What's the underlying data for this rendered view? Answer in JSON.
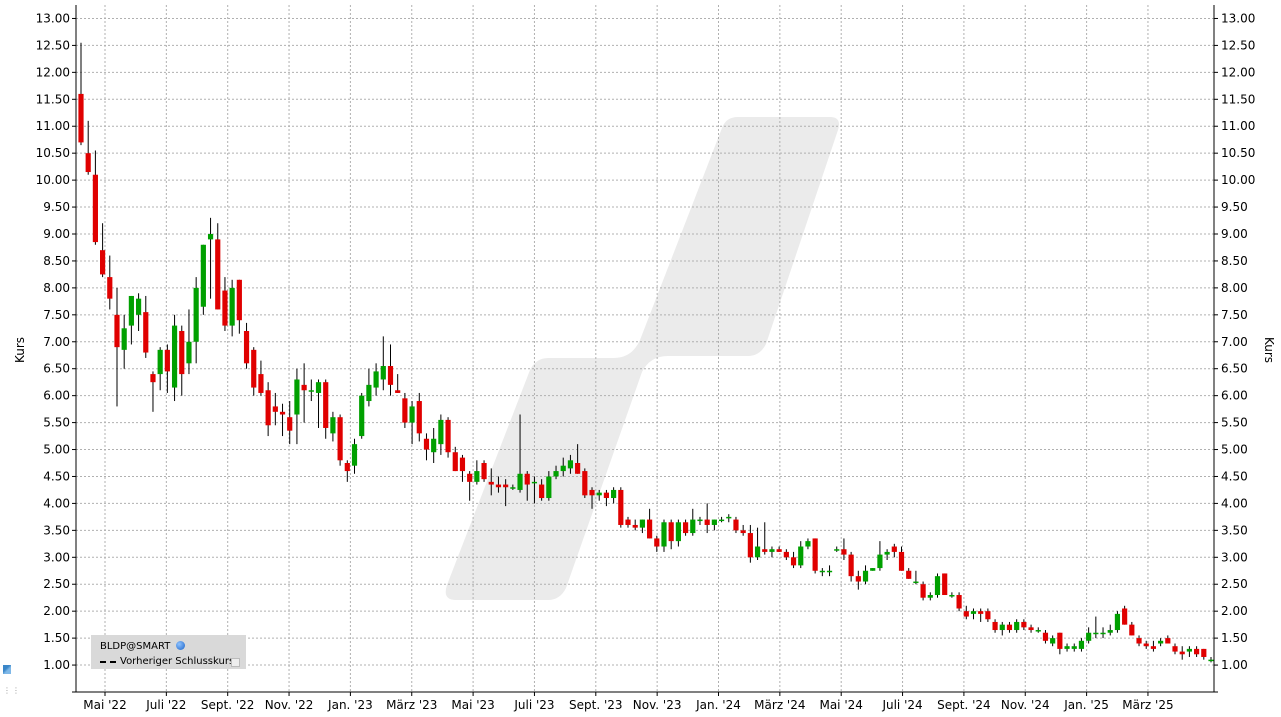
{
  "chart_data": {
    "type": "candlestick",
    "ylabel_left": "Kurs",
    "ylabel_right": "Kurs",
    "ylim": [
      0.5,
      13.25
    ],
    "yticks": [
      "1.00",
      "1.50",
      "2.00",
      "2.50",
      "3.00",
      "3.50",
      "4.00",
      "4.50",
      "5.00",
      "5.50",
      "6.00",
      "6.50",
      "7.00",
      "7.50",
      "8.00",
      "8.50",
      "9.00",
      "9.50",
      "10.00",
      "10.50",
      "11.00",
      "11.50",
      "12.00",
      "12.50",
      "13.00"
    ],
    "xticks": [
      "Mai '22",
      "Juli '22",
      "Sept. '22",
      "Nov. '22",
      "Jan. '23",
      "März '23",
      "Mai '23",
      "Juli '23",
      "Sept. '23",
      "Nov. '23",
      "Jan. '24",
      "März '24",
      "Mai '24",
      "Juli '24",
      "Sept. '24",
      "Nov. '24",
      "Jan. '25",
      "März '25"
    ],
    "grid": true,
    "colors": {
      "up": "#00a000",
      "down": "#e00000",
      "grid": "#b0b0b0",
      "watermark": "#ebebeb"
    },
    "candles": [
      {
        "o": 11.6,
        "h": 12.55,
        "l": 10.65,
        "c": 10.7
      },
      {
        "o": 10.5,
        "h": 11.1,
        "l": 10.1,
        "c": 10.15
      },
      {
        "o": 10.1,
        "h": 10.55,
        "l": 8.8,
        "c": 8.85
      },
      {
        "o": 8.7,
        "h": 9.2,
        "l": 8.2,
        "c": 8.25
      },
      {
        "o": 8.2,
        "h": 8.6,
        "l": 7.6,
        "c": 7.8
      },
      {
        "o": 7.5,
        "h": 8.0,
        "l": 5.8,
        "c": 6.9
      },
      {
        "o": 6.85,
        "h": 7.5,
        "l": 6.5,
        "c": 7.25
      },
      {
        "o": 7.3,
        "h": 7.85,
        "l": 6.95,
        "c": 7.85
      },
      {
        "o": 7.5,
        "h": 7.9,
        "l": 7.2,
        "c": 7.8
      },
      {
        "o": 7.55,
        "h": 7.85,
        "l": 6.7,
        "c": 6.8
      },
      {
        "o": 6.4,
        "h": 6.45,
        "l": 5.7,
        "c": 6.25
      },
      {
        "o": 6.4,
        "h": 6.9,
        "l": 6.1,
        "c": 6.85
      },
      {
        "o": 6.85,
        "h": 6.95,
        "l": 6.05,
        "c": 6.45
      },
      {
        "o": 6.15,
        "h": 7.5,
        "l": 5.9,
        "c": 7.3
      },
      {
        "o": 7.2,
        "h": 7.3,
        "l": 6.0,
        "c": 6.4
      },
      {
        "o": 6.6,
        "h": 7.6,
        "l": 6.4,
        "c": 7.0
      },
      {
        "o": 7.0,
        "h": 8.2,
        "l": 6.6,
        "c": 8.0
      },
      {
        "o": 7.65,
        "h": 8.8,
        "l": 7.5,
        "c": 8.8
      },
      {
        "o": 8.9,
        "h": 9.3,
        "l": 7.8,
        "c": 9.0
      },
      {
        "o": 8.9,
        "h": 9.2,
        "l": 7.6,
        "c": 7.6
      },
      {
        "o": 7.95,
        "h": 8.2,
        "l": 7.2,
        "c": 7.3
      },
      {
        "o": 7.3,
        "h": 8.15,
        "l": 7.1,
        "c": 8.0
      },
      {
        "o": 8.15,
        "h": 8.15,
        "l": 7.15,
        "c": 7.4
      },
      {
        "o": 7.2,
        "h": 7.35,
        "l": 6.5,
        "c": 6.6
      },
      {
        "o": 6.85,
        "h": 6.9,
        "l": 6.0,
        "c": 6.15
      },
      {
        "o": 6.4,
        "h": 6.65,
        "l": 6.0,
        "c": 6.05
      },
      {
        "o": 6.1,
        "h": 6.25,
        "l": 5.25,
        "c": 5.45
      },
      {
        "o": 5.8,
        "h": 6.05,
        "l": 5.45,
        "c": 5.7
      },
      {
        "o": 5.7,
        "h": 5.85,
        "l": 5.25,
        "c": 5.65
      },
      {
        "o": 5.6,
        "h": 5.9,
        "l": 5.1,
        "c": 5.35
      },
      {
        "o": 5.65,
        "h": 6.5,
        "l": 5.1,
        "c": 6.3
      },
      {
        "o": 6.2,
        "h": 6.6,
        "l": 5.5,
        "c": 6.1
      },
      {
        "o": 6.1,
        "h": 6.3,
        "l": 5.9,
        "c": 6.1
      },
      {
        "o": 6.05,
        "h": 6.3,
        "l": 5.4,
        "c": 6.25
      },
      {
        "o": 6.25,
        "h": 6.3,
        "l": 5.2,
        "c": 5.4
      },
      {
        "o": 5.3,
        "h": 5.7,
        "l": 5.15,
        "c": 5.6
      },
      {
        "o": 5.6,
        "h": 5.65,
        "l": 4.7,
        "c": 4.8
      },
      {
        "o": 4.75,
        "h": 4.8,
        "l": 4.4,
        "c": 4.6
      },
      {
        "o": 4.7,
        "h": 5.2,
        "l": 4.55,
        "c": 5.1
      },
      {
        "o": 5.25,
        "h": 6.05,
        "l": 5.2,
        "c": 6.0
      },
      {
        "o": 5.9,
        "h": 6.5,
        "l": 5.8,
        "c": 6.2
      },
      {
        "o": 6.15,
        "h": 6.6,
        "l": 6.0,
        "c": 6.45
      },
      {
        "o": 6.3,
        "h": 7.1,
        "l": 6.1,
        "c": 6.55
      },
      {
        "o": 6.55,
        "h": 6.95,
        "l": 6.0,
        "c": 6.2
      },
      {
        "o": 6.1,
        "h": 6.4,
        "l": 6.05,
        "c": 6.05
      },
      {
        "o": 5.95,
        "h": 6.05,
        "l": 5.4,
        "c": 5.5
      },
      {
        "o": 5.5,
        "h": 5.9,
        "l": 5.1,
        "c": 5.8
      },
      {
        "o": 5.9,
        "h": 6.05,
        "l": 5.15,
        "c": 5.3
      },
      {
        "o": 5.2,
        "h": 5.3,
        "l": 4.8,
        "c": 5.0
      },
      {
        "o": 4.95,
        "h": 5.4,
        "l": 4.75,
        "c": 5.2
      },
      {
        "o": 5.1,
        "h": 5.65,
        "l": 4.9,
        "c": 5.55
      },
      {
        "o": 5.55,
        "h": 5.6,
        "l": 4.85,
        "c": 4.95
      },
      {
        "o": 4.95,
        "h": 5.05,
        "l": 4.6,
        "c": 4.6
      },
      {
        "o": 4.85,
        "h": 4.9,
        "l": 4.4,
        "c": 4.6
      },
      {
        "o": 4.55,
        "h": 4.6,
        "l": 4.05,
        "c": 4.4
      },
      {
        "o": 4.4,
        "h": 4.8,
        "l": 4.35,
        "c": 4.6
      },
      {
        "o": 4.75,
        "h": 4.8,
        "l": 4.4,
        "c": 4.45
      },
      {
        "o": 4.4,
        "h": 4.65,
        "l": 4.15,
        "c": 4.35
      },
      {
        "o": 4.35,
        "h": 4.5,
        "l": 4.2,
        "c": 4.3
      },
      {
        "o": 4.35,
        "h": 4.45,
        "l": 3.95,
        "c": 4.3
      },
      {
        "o": 4.3,
        "h": 4.35,
        "l": 4.25,
        "c": 4.3
      },
      {
        "o": 4.25,
        "h": 5.65,
        "l": 4.2,
        "c": 4.55
      },
      {
        "o": 4.55,
        "h": 4.6,
        "l": 4.05,
        "c": 4.35
      },
      {
        "o": 4.4,
        "h": 4.5,
        "l": 4.0,
        "c": 4.4
      },
      {
        "o": 4.35,
        "h": 4.45,
        "l": 4.05,
        "c": 4.1
      },
      {
        "o": 4.1,
        "h": 4.6,
        "l": 4.05,
        "c": 4.5
      },
      {
        "o": 4.5,
        "h": 4.7,
        "l": 4.45,
        "c": 4.6
      },
      {
        "o": 4.6,
        "h": 4.85,
        "l": 4.5,
        "c": 4.7
      },
      {
        "o": 4.65,
        "h": 4.9,
        "l": 4.55,
        "c": 4.8
      },
      {
        "o": 4.75,
        "h": 5.1,
        "l": 4.55,
        "c": 4.55
      },
      {
        "o": 4.6,
        "h": 4.65,
        "l": 4.1,
        "c": 4.15
      },
      {
        "o": 4.25,
        "h": 4.3,
        "l": 3.9,
        "c": 4.15
      },
      {
        "o": 4.15,
        "h": 4.25,
        "l": 4.05,
        "c": 4.2
      },
      {
        "o": 4.2,
        "h": 4.25,
        "l": 3.95,
        "c": 4.1
      },
      {
        "o": 4.1,
        "h": 4.3,
        "l": 4.0,
        "c": 4.25
      },
      {
        "o": 4.25,
        "h": 4.3,
        "l": 3.55,
        "c": 3.6
      },
      {
        "o": 3.7,
        "h": 3.75,
        "l": 3.55,
        "c": 3.6
      },
      {
        "o": 3.6,
        "h": 3.7,
        "l": 3.5,
        "c": 3.55
      },
      {
        "o": 3.55,
        "h": 3.7,
        "l": 3.45,
        "c": 3.7
      },
      {
        "o": 3.7,
        "h": 3.9,
        "l": 3.35,
        "c": 3.35
      },
      {
        "o": 3.35,
        "h": 3.4,
        "l": 3.1,
        "c": 3.2
      },
      {
        "o": 3.2,
        "h": 3.7,
        "l": 3.1,
        "c": 3.65
      },
      {
        "o": 3.65,
        "h": 3.7,
        "l": 3.15,
        "c": 3.3
      },
      {
        "o": 3.3,
        "h": 3.7,
        "l": 3.2,
        "c": 3.65
      },
      {
        "o": 3.65,
        "h": 3.7,
        "l": 3.4,
        "c": 3.45
      },
      {
        "o": 3.45,
        "h": 3.9,
        "l": 3.4,
        "c": 3.7
      },
      {
        "o": 3.7,
        "h": 3.75,
        "l": 3.6,
        "c": 3.7
      },
      {
        "o": 3.7,
        "h": 4.0,
        "l": 3.45,
        "c": 3.6
      },
      {
        "o": 3.6,
        "h": 3.7,
        "l": 3.5,
        "c": 3.7
      },
      {
        "o": 3.7,
        "h": 3.75,
        "l": 3.65,
        "c": 3.7
      },
      {
        "o": 3.75,
        "h": 3.8,
        "l": 3.65,
        "c": 3.75
      },
      {
        "o": 3.7,
        "h": 3.75,
        "l": 3.45,
        "c": 3.5
      },
      {
        "o": 3.5,
        "h": 3.6,
        "l": 3.4,
        "c": 3.45
      },
      {
        "o": 3.45,
        "h": 3.6,
        "l": 2.9,
        "c": 3.0
      },
      {
        "o": 3.0,
        "h": 3.55,
        "l": 2.95,
        "c": 3.2
      },
      {
        "o": 3.15,
        "h": 3.65,
        "l": 3.05,
        "c": 3.1
      },
      {
        "o": 3.1,
        "h": 3.2,
        "l": 3.0,
        "c": 3.15
      },
      {
        "o": 3.15,
        "h": 3.2,
        "l": 3.1,
        "c": 3.1
      },
      {
        "o": 3.1,
        "h": 3.15,
        "l": 2.95,
        "c": 3.0
      },
      {
        "o": 3.0,
        "h": 3.1,
        "l": 2.8,
        "c": 2.85
      },
      {
        "o": 2.85,
        "h": 3.3,
        "l": 2.8,
        "c": 3.2
      },
      {
        "o": 3.2,
        "h": 3.35,
        "l": 3.15,
        "c": 3.3
      },
      {
        "o": 3.35,
        "h": 3.35,
        "l": 2.7,
        "c": 2.75
      },
      {
        "o": 2.75,
        "h": 2.8,
        "l": 2.65,
        "c": 2.75
      },
      {
        "o": 2.75,
        "h": 2.85,
        "l": 2.65,
        "c": 2.75
      },
      {
        "o": 3.15,
        "h": 3.2,
        "l": 3.1,
        "c": 3.15
      },
      {
        "o": 3.15,
        "h": 3.35,
        "l": 2.95,
        "c": 3.05
      },
      {
        "o": 3.05,
        "h": 3.1,
        "l": 2.55,
        "c": 2.65
      },
      {
        "o": 2.65,
        "h": 2.75,
        "l": 2.4,
        "c": 2.55
      },
      {
        "o": 2.55,
        "h": 2.85,
        "l": 2.5,
        "c": 2.75
      },
      {
        "o": 2.75,
        "h": 2.8,
        "l": 2.75,
        "c": 2.8
      },
      {
        "o": 2.8,
        "h": 3.3,
        "l": 2.75,
        "c": 3.05
      },
      {
        "o": 3.05,
        "h": 3.15,
        "l": 2.95,
        "c": 3.1
      },
      {
        "o": 3.2,
        "h": 3.25,
        "l": 3.0,
        "c": 3.1
      },
      {
        "o": 3.1,
        "h": 3.2,
        "l": 2.75,
        "c": 2.75
      },
      {
        "o": 2.75,
        "h": 2.8,
        "l": 2.6,
        "c": 2.6
      },
      {
        "o": 2.55,
        "h": 2.75,
        "l": 2.5,
        "c": 2.55
      },
      {
        "o": 2.5,
        "h": 2.55,
        "l": 2.2,
        "c": 2.25
      },
      {
        "o": 2.25,
        "h": 2.35,
        "l": 2.2,
        "c": 2.3
      },
      {
        "o": 2.3,
        "h": 2.7,
        "l": 2.25,
        "c": 2.65
      },
      {
        "o": 2.7,
        "h": 2.7,
        "l": 2.3,
        "c": 2.3
      },
      {
        "o": 2.3,
        "h": 2.35,
        "l": 2.25,
        "c": 2.3
      },
      {
        "o": 2.3,
        "h": 2.35,
        "l": 2.0,
        "c": 2.05
      },
      {
        "o": 2.0,
        "h": 2.1,
        "l": 1.85,
        "c": 1.9
      },
      {
        "o": 1.95,
        "h": 2.05,
        "l": 1.85,
        "c": 2.0
      },
      {
        "o": 2.0,
        "h": 2.05,
        "l": 1.8,
        "c": 1.95
      },
      {
        "o": 2.0,
        "h": 2.05,
        "l": 1.8,
        "c": 1.85
      },
      {
        "o": 1.8,
        "h": 1.85,
        "l": 1.6,
        "c": 1.65
      },
      {
        "o": 1.65,
        "h": 1.8,
        "l": 1.55,
        "c": 1.75
      },
      {
        "o": 1.75,
        "h": 1.8,
        "l": 1.6,
        "c": 1.65
      },
      {
        "o": 1.65,
        "h": 1.85,
        "l": 1.6,
        "c": 1.8
      },
      {
        "o": 1.8,
        "h": 1.85,
        "l": 1.65,
        "c": 1.7
      },
      {
        "o": 1.7,
        "h": 1.75,
        "l": 1.6,
        "c": 1.65
      },
      {
        "o": 1.65,
        "h": 1.7,
        "l": 1.6,
        "c": 1.65
      },
      {
        "o": 1.6,
        "h": 1.65,
        "l": 1.4,
        "c": 1.45
      },
      {
        "o": 1.4,
        "h": 1.55,
        "l": 1.35,
        "c": 1.5
      },
      {
        "o": 1.6,
        "h": 1.6,
        "l": 1.2,
        "c": 1.3
      },
      {
        "o": 1.3,
        "h": 1.4,
        "l": 1.25,
        "c": 1.35
      },
      {
        "o": 1.3,
        "h": 1.4,
        "l": 1.25,
        "c": 1.35
      },
      {
        "o": 1.3,
        "h": 1.5,
        "l": 1.25,
        "c": 1.45
      },
      {
        "o": 1.45,
        "h": 1.7,
        "l": 1.4,
        "c": 1.6
      },
      {
        "o": 1.6,
        "h": 1.9,
        "l": 1.5,
        "c": 1.6
      },
      {
        "o": 1.6,
        "h": 1.7,
        "l": 1.5,
        "c": 1.6
      },
      {
        "o": 1.6,
        "h": 1.75,
        "l": 1.55,
        "c": 1.65
      },
      {
        "o": 1.65,
        "h": 2.0,
        "l": 1.6,
        "c": 1.95
      },
      {
        "o": 2.05,
        "h": 2.1,
        "l": 1.75,
        "c": 1.75
      },
      {
        "o": 1.75,
        "h": 1.8,
        "l": 1.55,
        "c": 1.55
      },
      {
        "o": 1.5,
        "h": 1.55,
        "l": 1.35,
        "c": 1.4
      },
      {
        "o": 1.4,
        "h": 1.45,
        "l": 1.3,
        "c": 1.35
      },
      {
        "o": 1.35,
        "h": 1.45,
        "l": 1.25,
        "c": 1.3
      },
      {
        "o": 1.4,
        "h": 1.5,
        "l": 1.35,
        "c": 1.45
      },
      {
        "o": 1.5,
        "h": 1.55,
        "l": 1.4,
        "c": 1.4
      },
      {
        "o": 1.35,
        "h": 1.4,
        "l": 1.2,
        "c": 1.25
      },
      {
        "o": 1.25,
        "h": 1.35,
        "l": 1.1,
        "c": 1.2
      },
      {
        "o": 1.25,
        "h": 1.35,
        "l": 1.15,
        "c": 1.3
      },
      {
        "o": 1.3,
        "h": 1.35,
        "l": 1.15,
        "c": 1.2
      },
      {
        "o": 1.3,
        "h": 1.3,
        "l": 1.1,
        "c": 1.15
      },
      {
        "o": 1.1,
        "h": 1.15,
        "l": 1.05,
        "c": 1.1
      }
    ]
  },
  "legend": {
    "symbol": "BLDP@SMART",
    "symbol_icon": "globe-icon",
    "prev_close_label": "Vorheriger Schlusskurs"
  }
}
